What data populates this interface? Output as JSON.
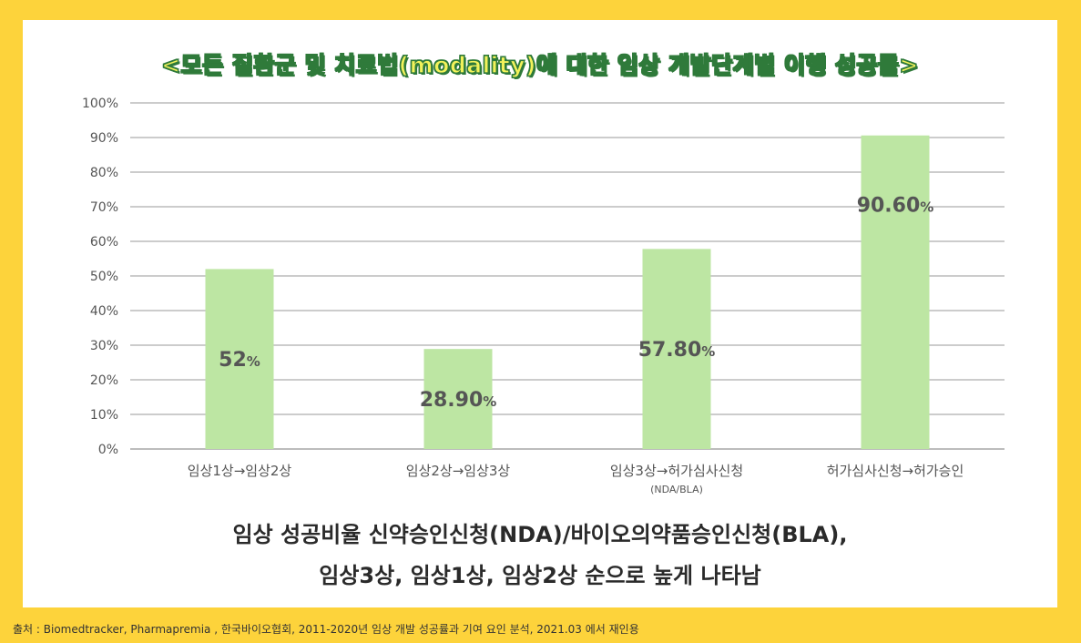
{
  "title": "<모든 질환군 및 치료법(modality)에 대한 임상 개발단계별 이행 성공률>",
  "caption_line1": "임상 성공비율 신약승인신청(NDA)/바이오의약품승인신청(BLA),",
  "caption_line2": "임상3상, 임상1상, 임상2상 순으로 높게 나타남",
  "source": "출처 : Biomedtracker, Pharmapremia , 한국바이오협회, 2011-2020년 임상 개발 성공률과 기여 요인 분석, 2021.03 에서 재인용",
  "colors": {
    "background": "#fdd33b",
    "bar": "#bde6a3",
    "title_fill": "#f2f25a",
    "title_outline": "#2f7a3a",
    "grid": "#9a9a9a",
    "label": "#555555"
  },
  "chart_data": {
    "type": "bar",
    "categories": [
      "임상1상→임상2상",
      "임상2상→임상3상",
      "임상3상→허가심사신청",
      "허가심사신청→허가승인"
    ],
    "category_sublabels": [
      "",
      "",
      "(NDA/BLA)",
      ""
    ],
    "values": [
      52,
      28.9,
      57.8,
      90.6
    ],
    "data_labels": [
      {
        "num": "52",
        "unit": "%"
      },
      {
        "num": "28.90",
        "unit": "%"
      },
      {
        "num": "57.80",
        "unit": "%"
      },
      {
        "num": "90.60",
        "unit": "%"
      }
    ],
    "ylim": [
      0,
      100
    ],
    "yticks": [
      "0%",
      "10%",
      "20%",
      "30%",
      "40%",
      "50%",
      "60%",
      "70%",
      "80%",
      "90%",
      "100%"
    ],
    "grid": true,
    "legend": "none"
  }
}
